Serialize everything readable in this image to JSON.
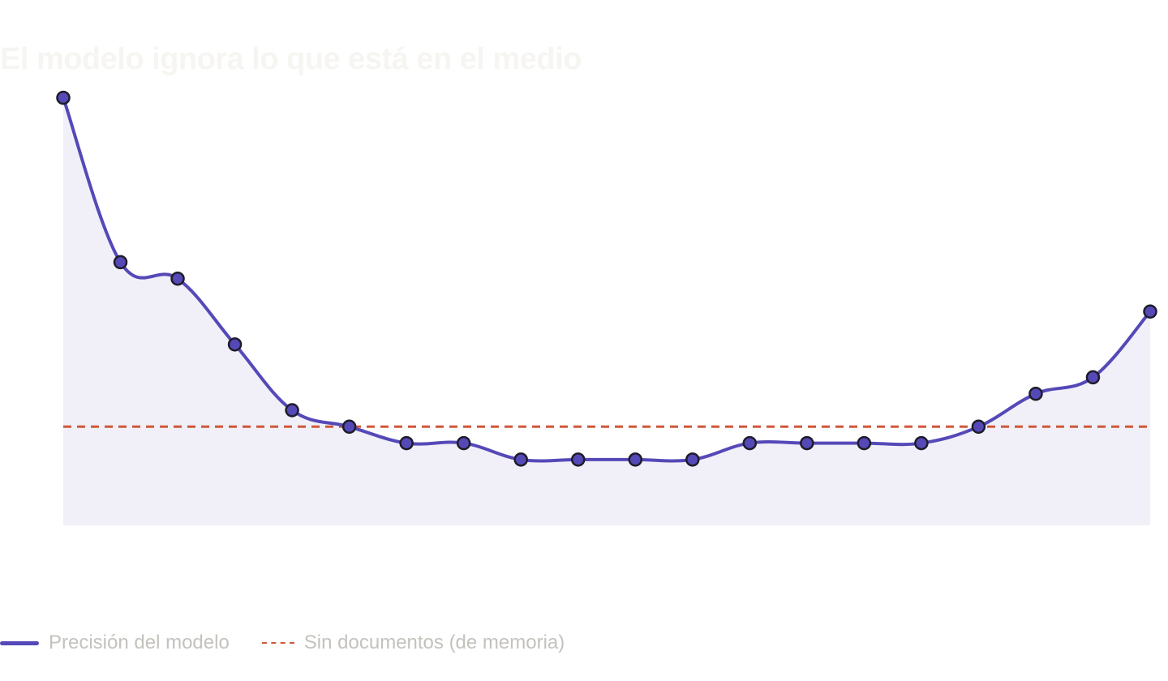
{
  "chart_data": {
    "type": "line",
    "title": "El modelo ignora lo que está en el medio",
    "xlabel": "",
    "ylabel": "",
    "x": [
      1,
      2,
      3,
      4,
      5,
      6,
      7,
      8,
      9,
      10,
      11,
      12,
      13,
      14,
      15,
      16,
      17,
      18,
      19,
      20
    ],
    "ylim": [
      50,
      78
    ],
    "grid": false,
    "legend_position": "bottom-left",
    "series": [
      {
        "name": "Precisión del modelo",
        "values": [
          76,
          66,
          65,
          61,
          57,
          56,
          55,
          55,
          54,
          54,
          54,
          54,
          55,
          55,
          55,
          55,
          56,
          58,
          59,
          63
        ],
        "color": "#5549b8",
        "style": "solid",
        "markers": true,
        "fill": true
      },
      {
        "name": "Sin documentos (de memoria)",
        "values": [
          56,
          56,
          56,
          56,
          56,
          56,
          56,
          56,
          56,
          56,
          56,
          56,
          56,
          56,
          56,
          56,
          56,
          56,
          56,
          56
        ],
        "color": "#d0583a",
        "style": "dashed",
        "markers": false,
        "fill": false
      }
    ],
    "colors": {
      "area_fill": "#f1f0f8",
      "marker_stroke": "#1e1c2a"
    }
  }
}
